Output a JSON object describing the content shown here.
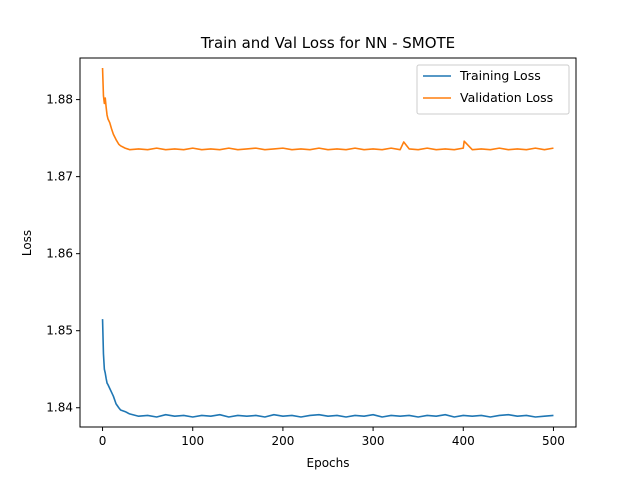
{
  "chart_data": {
    "type": "line",
    "title": "Train and Val Loss for NN - SMOTE",
    "xlabel": "Epochs",
    "ylabel": "Loss",
    "xlim": [
      -25,
      525
    ],
    "ylim": [
      1.8375,
      1.8854
    ],
    "x_ticks": [
      0,
      100,
      200,
      300,
      400,
      500
    ],
    "y_ticks": [
      1.84,
      1.85,
      1.86,
      1.87,
      1.88
    ],
    "x_tick_labels": [
      "0",
      "100",
      "200",
      "300",
      "400",
      "500"
    ],
    "y_tick_labels": [
      "1.84",
      "1.85",
      "1.86",
      "1.87",
      "1.88"
    ],
    "grid": false,
    "legend_position": "top-right",
    "series": [
      {
        "name": "Training Loss",
        "color": "#1f77b4",
        "x": [
          0,
          1,
          2,
          3,
          4,
          5,
          6,
          8,
          10,
          12,
          15,
          18,
          20,
          25,
          30,
          40,
          50,
          60,
          70,
          80,
          90,
          100,
          110,
          120,
          130,
          140,
          150,
          160,
          170,
          180,
          190,
          200,
          210,
          220,
          230,
          240,
          250,
          260,
          270,
          280,
          290,
          300,
          310,
          320,
          330,
          340,
          350,
          360,
          370,
          380,
          390,
          400,
          410,
          420,
          430,
          440,
          450,
          460,
          470,
          480,
          490,
          500
        ],
        "y": [
          1.8515,
          1.847,
          1.845,
          1.8445,
          1.8438,
          1.8432,
          1.843,
          1.8425,
          1.842,
          1.8415,
          1.8405,
          1.84,
          1.8397,
          1.8395,
          1.8392,
          1.8389,
          1.839,
          1.8388,
          1.8391,
          1.8389,
          1.839,
          1.8388,
          1.839,
          1.8389,
          1.8391,
          1.8388,
          1.839,
          1.8389,
          1.839,
          1.8388,
          1.8391,
          1.8389,
          1.839,
          1.8388,
          1.839,
          1.8391,
          1.8389,
          1.839,
          1.8388,
          1.839,
          1.8389,
          1.8391,
          1.8388,
          1.839,
          1.8389,
          1.839,
          1.8388,
          1.839,
          1.8389,
          1.8391,
          1.8388,
          1.839,
          1.8389,
          1.839,
          1.8388,
          1.839,
          1.8391,
          1.8389,
          1.839,
          1.8388,
          1.8389,
          1.839
        ]
      },
      {
        "name": "Validation Loss",
        "color": "#ff7f0e",
        "x": [
          0,
          1,
          2,
          3,
          4,
          5,
          6,
          8,
          10,
          12,
          15,
          18,
          20,
          25,
          30,
          40,
          50,
          60,
          70,
          80,
          90,
          100,
          110,
          120,
          130,
          140,
          150,
          160,
          170,
          180,
          190,
          200,
          210,
          220,
          230,
          240,
          250,
          260,
          270,
          280,
          290,
          300,
          310,
          320,
          330,
          334,
          340,
          350,
          360,
          370,
          380,
          390,
          400,
          401,
          410,
          420,
          430,
          440,
          450,
          460,
          470,
          480,
          490,
          500
        ],
        "y": [
          1.8841,
          1.8805,
          1.8795,
          1.8802,
          1.879,
          1.878,
          1.8775,
          1.877,
          1.8762,
          1.8755,
          1.8748,
          1.8742,
          1.874,
          1.8737,
          1.8735,
          1.8736,
          1.8735,
          1.8737,
          1.8735,
          1.8736,
          1.8735,
          1.8737,
          1.8735,
          1.8736,
          1.8735,
          1.8737,
          1.8735,
          1.8736,
          1.8737,
          1.8735,
          1.8736,
          1.8737,
          1.8735,
          1.8736,
          1.8735,
          1.8737,
          1.8735,
          1.8736,
          1.8735,
          1.8737,
          1.8735,
          1.8736,
          1.8735,
          1.8737,
          1.8735,
          1.8745,
          1.8736,
          1.8735,
          1.8737,
          1.8735,
          1.8736,
          1.8735,
          1.8737,
          1.8746,
          1.8735,
          1.8736,
          1.8735,
          1.8737,
          1.8735,
          1.8736,
          1.8735,
          1.8737,
          1.8735,
          1.8737
        ]
      }
    ]
  }
}
